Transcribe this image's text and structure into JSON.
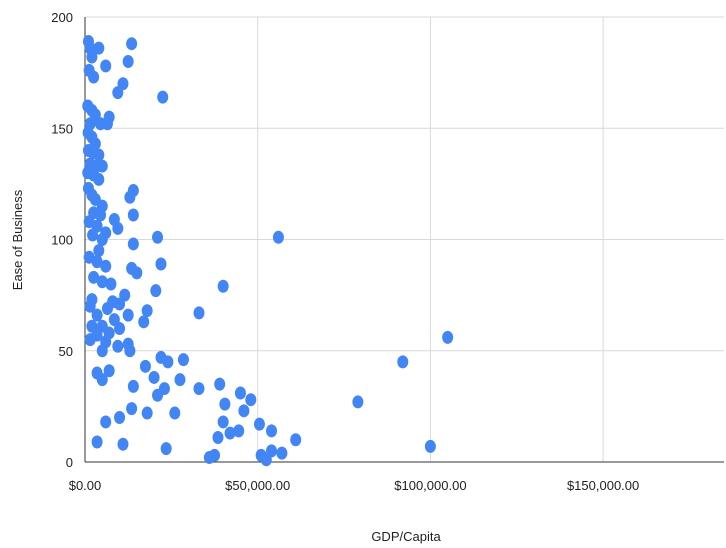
{
  "chart_data": {
    "type": "scatter",
    "title": "",
    "xlabel": "GDP/Capita",
    "ylabel": "Ease of Business",
    "xlim": [
      0,
      185000
    ],
    "ylim": [
      0,
      200
    ],
    "x_ticks": [
      0,
      50000,
      100000,
      150000
    ],
    "x_tick_labels": [
      "$0.00",
      "$50,000.00",
      "$100,000.00",
      "$150,000.00"
    ],
    "y_ticks": [
      0,
      50,
      100,
      150,
      200
    ],
    "y_tick_labels": [
      "0",
      "50",
      "100",
      "150",
      "200"
    ],
    "grid": true,
    "legend": "none",
    "point_color": "#4285f4",
    "series": [
      {
        "points": [
          [
            1000,
            189
          ],
          [
            1500,
            186
          ],
          [
            4000,
            186
          ],
          [
            13500,
            188
          ],
          [
            2000,
            182
          ],
          [
            12500,
            180
          ],
          [
            6000,
            178
          ],
          [
            1200,
            176
          ],
          [
            2500,
            173
          ],
          [
            11000,
            170
          ],
          [
            9500,
            166
          ],
          [
            22500,
            164
          ],
          [
            800,
            160
          ],
          [
            2000,
            158
          ],
          [
            3000,
            156
          ],
          [
            7000,
            155
          ],
          [
            1500,
            152
          ],
          [
            4500,
            152
          ],
          [
            6500,
            152
          ],
          [
            900,
            148
          ],
          [
            2000,
            146
          ],
          [
            3000,
            143
          ],
          [
            1000,
            140
          ],
          [
            2500,
            139
          ],
          [
            4000,
            138
          ],
          [
            1500,
            134
          ],
          [
            3500,
            133
          ],
          [
            5000,
            133
          ],
          [
            800,
            130
          ],
          [
            2500,
            129
          ],
          [
            4000,
            127
          ],
          [
            1000,
            123
          ],
          [
            2000,
            120
          ],
          [
            3000,
            118
          ],
          [
            14000,
            122
          ],
          [
            13000,
            119
          ],
          [
            5000,
            115
          ],
          [
            2500,
            112
          ],
          [
            4500,
            111
          ],
          [
            14000,
            111
          ],
          [
            8500,
            109
          ],
          [
            1200,
            108
          ],
          [
            3500,
            106
          ],
          [
            9500,
            105
          ],
          [
            6000,
            103
          ],
          [
            2200,
            102
          ],
          [
            5000,
            100
          ],
          [
            21000,
            101
          ],
          [
            56000,
            101
          ],
          [
            14000,
            98
          ],
          [
            4000,
            95
          ],
          [
            1200,
            92
          ],
          [
            3500,
            90
          ],
          [
            6000,
            88
          ],
          [
            22000,
            89
          ],
          [
            13500,
            87
          ],
          [
            15000,
            85
          ],
          [
            2500,
            83
          ],
          [
            5000,
            81
          ],
          [
            7500,
            80
          ],
          [
            40000,
            79
          ],
          [
            20500,
            77
          ],
          [
            11500,
            75
          ],
          [
            2000,
            73
          ],
          [
            8000,
            72
          ],
          [
            10000,
            71
          ],
          [
            6500,
            69
          ],
          [
            18000,
            68
          ],
          [
            1500,
            70
          ],
          [
            3500,
            66
          ],
          [
            33000,
            67
          ],
          [
            12500,
            66
          ],
          [
            8500,
            64
          ],
          [
            17000,
            63
          ],
          [
            5000,
            61
          ],
          [
            2000,
            61
          ],
          [
            10000,
            60
          ],
          [
            7000,
            58
          ],
          [
            3500,
            57
          ],
          [
            105000,
            56
          ],
          [
            1500,
            55
          ],
          [
            6000,
            54
          ],
          [
            12500,
            53
          ],
          [
            9500,
            52
          ],
          [
            5000,
            50
          ],
          [
            13000,
            50
          ],
          [
            22000,
            47
          ],
          [
            28500,
            46
          ],
          [
            24000,
            45
          ],
          [
            92000,
            45
          ],
          [
            17500,
            43
          ],
          [
            7000,
            41
          ],
          [
            3500,
            40
          ],
          [
            20000,
            38
          ],
          [
            5000,
            37
          ],
          [
            27500,
            37
          ],
          [
            14000,
            34
          ],
          [
            39000,
            35
          ],
          [
            23000,
            33
          ],
          [
            33000,
            33
          ],
          [
            45000,
            31
          ],
          [
            21000,
            30
          ],
          [
            48000,
            28
          ],
          [
            79000,
            27
          ],
          [
            40500,
            26
          ],
          [
            13500,
            24
          ],
          [
            46000,
            23
          ],
          [
            18000,
            22
          ],
          [
            26000,
            22
          ],
          [
            10000,
            20
          ],
          [
            6000,
            18
          ],
          [
            40000,
            18
          ],
          [
            50500,
            17
          ],
          [
            54000,
            14
          ],
          [
            44500,
            14
          ],
          [
            42000,
            13
          ],
          [
            38500,
            11
          ],
          [
            61000,
            10
          ],
          [
            3500,
            9
          ],
          [
            11000,
            8
          ],
          [
            100000,
            7
          ],
          [
            23500,
            6
          ],
          [
            54000,
            5
          ],
          [
            57000,
            4
          ],
          [
            37500,
            3
          ],
          [
            51000,
            3
          ],
          [
            36000,
            2
          ],
          [
            52500,
            1
          ]
        ]
      }
    ]
  }
}
